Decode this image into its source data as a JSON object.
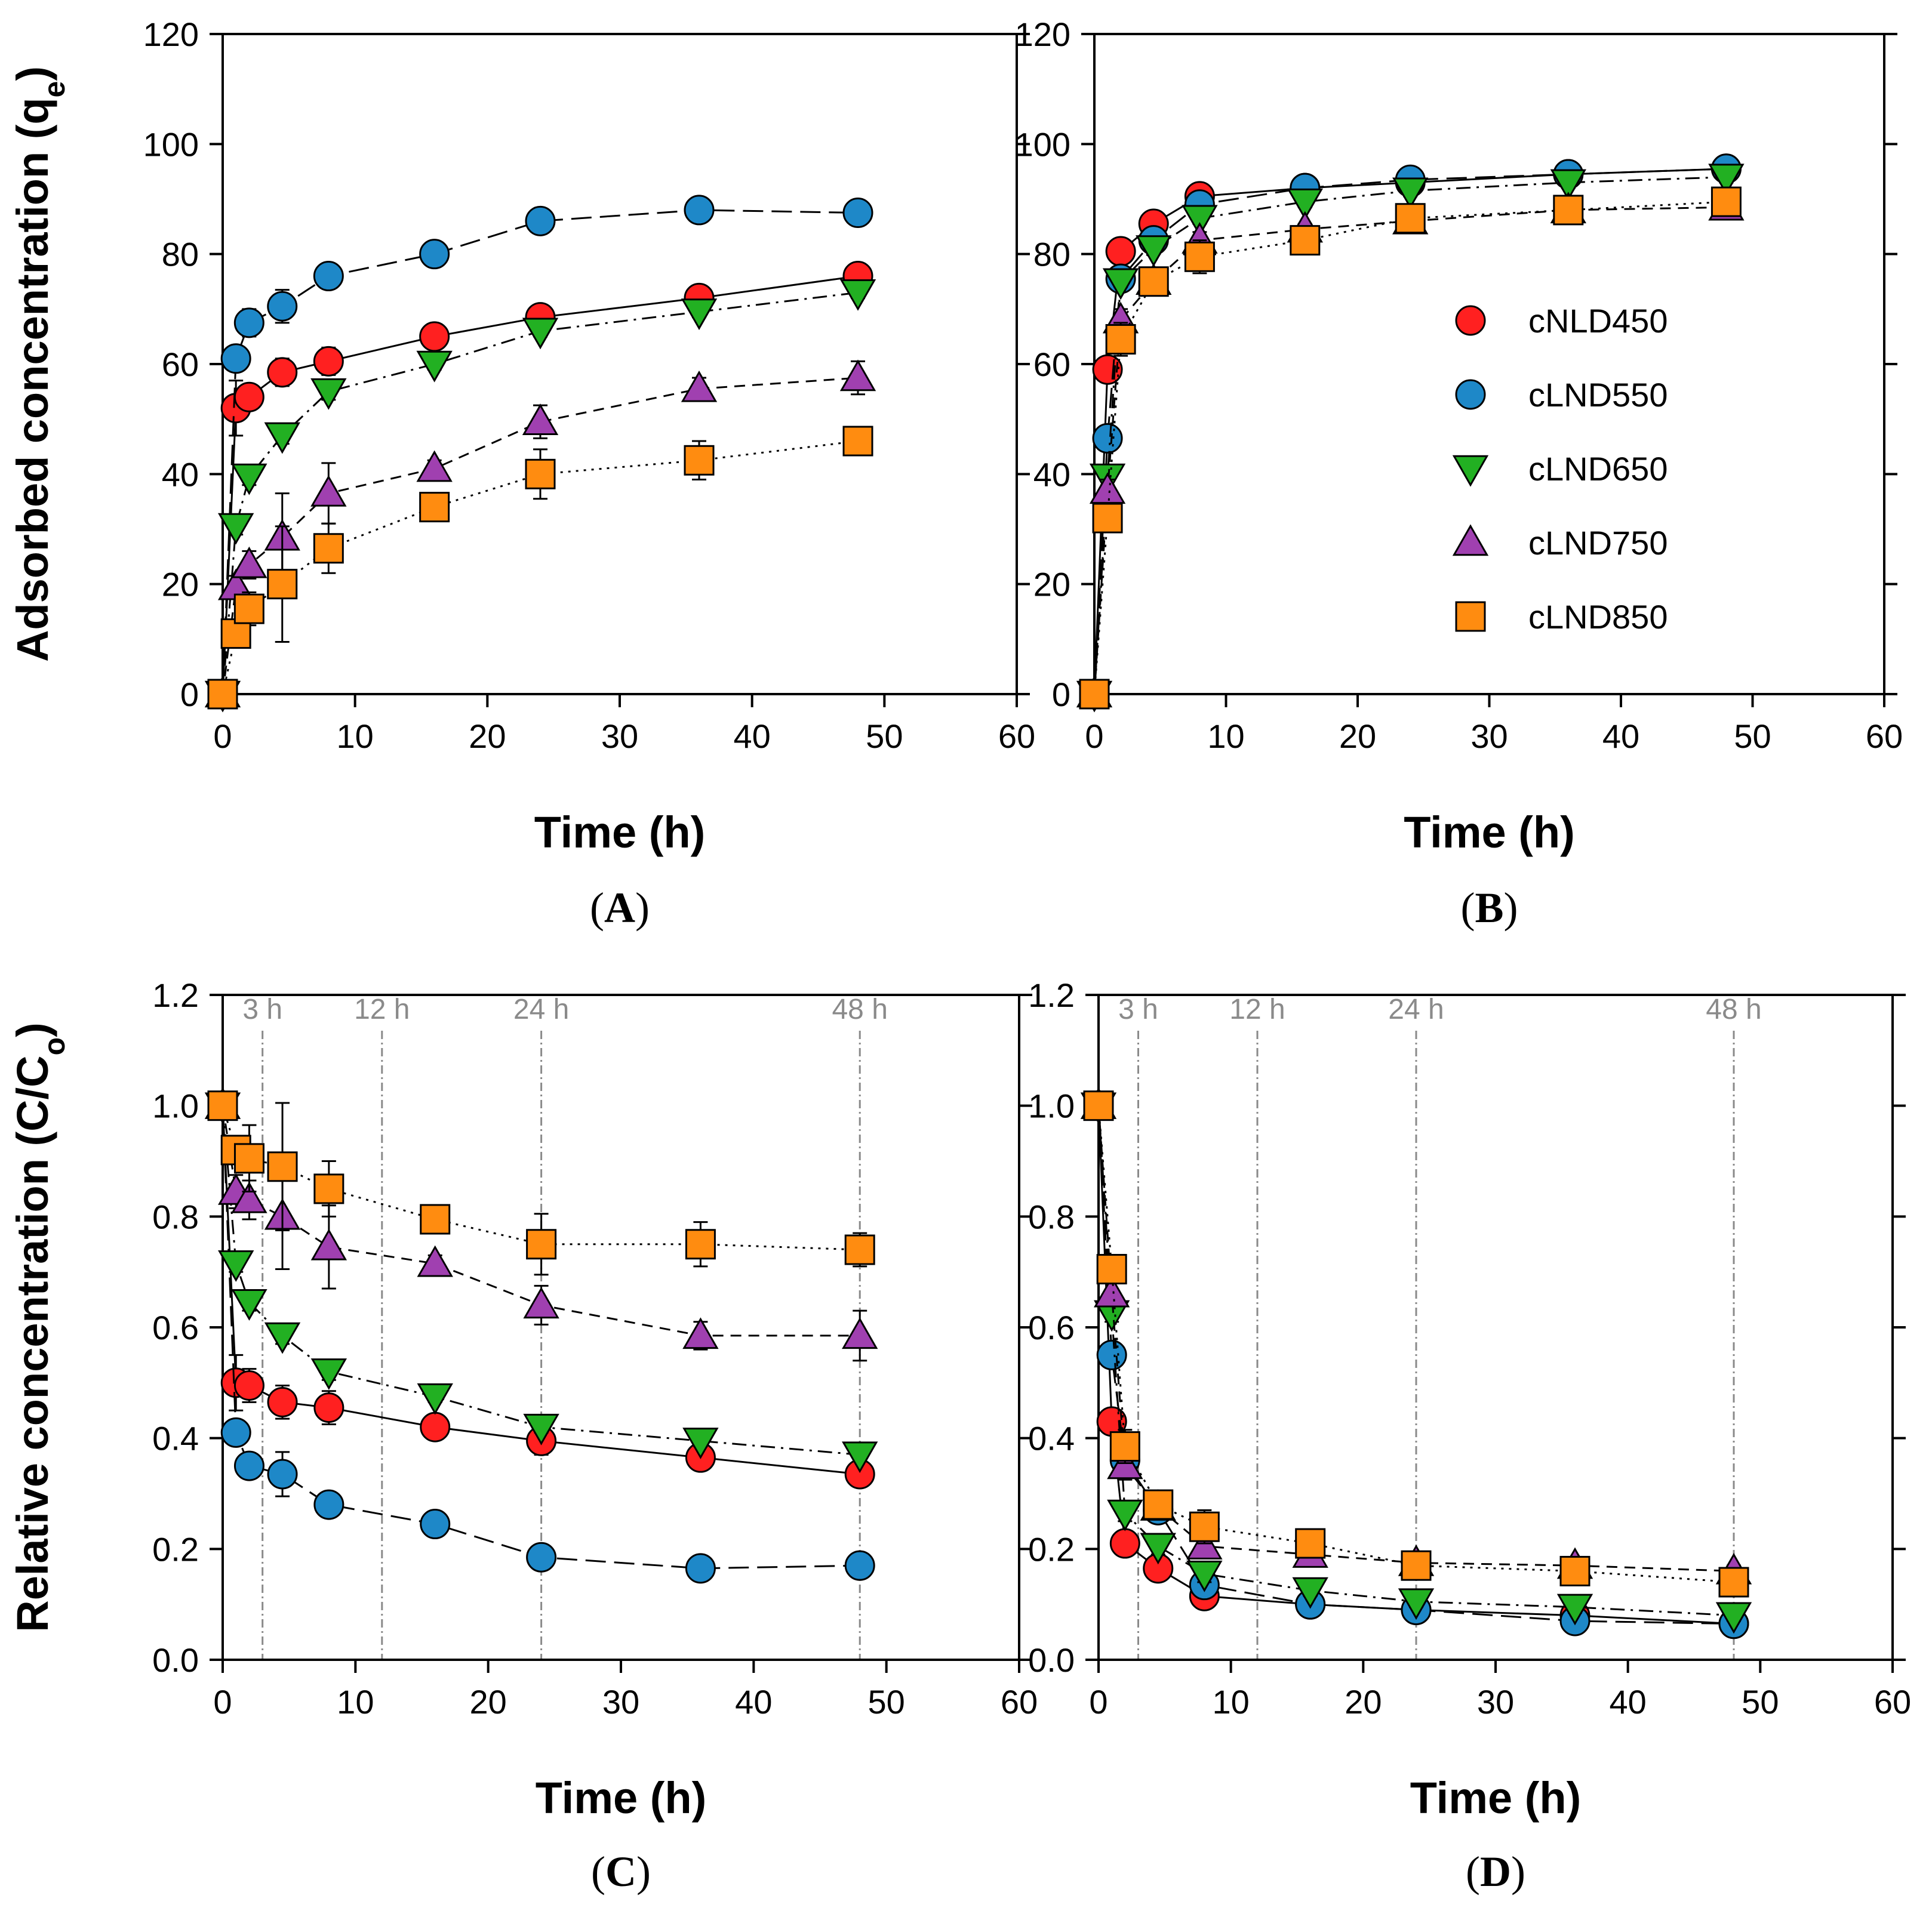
{
  "figure": {
    "shared_xlabel": "Time (h)",
    "series_styles": [
      {
        "name": "cNLD450",
        "color": "#ff2020",
        "marker": "circle",
        "dash": "solid"
      },
      {
        "name": "cLND550",
        "color": "#1e88c8",
        "marker": "circle",
        "dash": "longdash"
      },
      {
        "name": "cLND650",
        "color": "#22b022",
        "marker": "triangle-down",
        "dash": "dashdot"
      },
      {
        "name": "cLND750",
        "color": "#a040b0",
        "marker": "triangle-up",
        "dash": "dash"
      },
      {
        "name": "cLND850",
        "color": "#ff8c10",
        "marker": "square",
        "dash": "dotted"
      }
    ]
  },
  "chart_data": [
    {
      "panel": "A",
      "panel_label": "A",
      "type": "scatter",
      "xlabel": "Time (h)",
      "ylabel": "Adsorbed concentration (q",
      "ylabel_sub": "e",
      "ylabel_end": ")",
      "xlim": [
        0,
        60
      ],
      "ylim": [
        0,
        120
      ],
      "xticks": [
        0,
        10,
        20,
        30,
        40,
        50,
        60
      ],
      "yticks": [
        0,
        20,
        40,
        60,
        80,
        100,
        120
      ],
      "x": [
        0,
        1,
        2,
        4.5,
        8,
        16,
        24,
        36,
        48
      ],
      "series": [
        {
          "name": "cNLD450",
          "values": [
            0,
            52,
            54,
            58.5,
            60.5,
            65,
            68.5,
            72,
            76
          ],
          "errors": [
            0,
            5,
            2,
            2.5,
            2.5,
            1.5,
            1.5,
            1.5,
            1.5
          ]
        },
        {
          "name": "cLND550",
          "values": [
            0,
            61,
            67.5,
            70.5,
            76,
            80,
            86,
            88,
            87.5
          ],
          "errors": [
            0,
            1.5,
            2.5,
            3,
            1,
            1,
            1,
            1,
            1
          ]
        },
        {
          "name": "cLND650",
          "values": [
            0,
            30.5,
            39.5,
            47,
            55,
            60,
            66,
            69.5,
            73
          ],
          "errors": [
            0,
            1.5,
            1.5,
            1.5,
            1.5,
            1,
            1,
            1,
            1
          ]
        },
        {
          "name": "cLND750",
          "values": [
            0,
            19.5,
            23.5,
            28.5,
            36.5,
            41,
            49.5,
            55.5,
            57.5
          ],
          "errors": [
            0,
            2,
            2.5,
            8,
            5.5,
            1.5,
            3,
            2,
            3
          ]
        },
        {
          "name": "cLND850",
          "values": [
            0,
            11,
            15.5,
            20,
            26.5,
            34,
            40,
            42.5,
            46
          ],
          "errors": [
            0,
            1.5,
            3,
            10.5,
            4.5,
            1.5,
            4.5,
            3.5,
            2.5
          ]
        }
      ]
    },
    {
      "panel": "B",
      "panel_label": "B",
      "type": "scatter",
      "xlabel": "Time (h)",
      "xlim": [
        0,
        60
      ],
      "ylim": [
        0,
        120
      ],
      "xticks": [
        0,
        10,
        20,
        30,
        40,
        50,
        60
      ],
      "yticks": [
        0,
        20,
        40,
        60,
        80,
        100,
        120
      ],
      "legend": {
        "placement": "center-right",
        "entries": [
          "cNLD450",
          "cLND550",
          "cLND650",
          "cLND750",
          "cLND850"
        ]
      },
      "x": [
        0,
        1,
        2,
        4.5,
        8,
        16,
        24,
        36,
        48
      ],
      "series": [
        {
          "name": "cNLD450",
          "values": [
            0,
            59,
            80.5,
            85.5,
            90.5,
            92,
            93,
            94.5,
            95.5
          ],
          "errors": [
            0,
            2,
            1,
            1,
            1,
            1,
            1,
            1,
            1
          ]
        },
        {
          "name": "cLND550",
          "values": [
            0,
            46.5,
            75.5,
            82.5,
            89,
            92,
            93.5,
            94.5,
            95.5
          ],
          "errors": [
            0,
            2,
            1,
            1,
            1,
            1,
            1,
            1,
            1
          ]
        },
        {
          "name": "cLND650",
          "values": [
            0,
            39.5,
            75,
            81,
            86.5,
            89.5,
            91.5,
            93,
            94
          ],
          "errors": [
            0,
            1.5,
            1,
            1,
            1,
            1,
            1,
            1,
            1
          ]
        },
        {
          "name": "cLND750",
          "values": [
            0,
            37,
            68,
            75,
            82.5,
            84.5,
            86,
            88,
            88.5
          ],
          "errors": [
            0,
            2,
            2,
            1.5,
            1.5,
            1,
            1,
            1,
            1
          ]
        },
        {
          "name": "cLND850",
          "values": [
            0,
            32,
            64.5,
            75,
            79.5,
            82.5,
            86.5,
            88,
            89.5
          ],
          "errors": [
            0,
            2,
            3,
            1.5,
            3,
            1.5,
            1,
            1,
            1.5
          ]
        }
      ]
    },
    {
      "panel": "C",
      "panel_label": "C",
      "type": "scatter",
      "xlabel": "Time (h)",
      "ylabel": "Relative concentration (C/C",
      "ylabel_sub": "o",
      "ylabel_end": ")",
      "xlim": [
        0,
        60
      ],
      "ylim": [
        0,
        1.2
      ],
      "xticks": [
        0,
        10,
        20,
        30,
        40,
        50,
        60
      ],
      "yticks": [
        "0.0",
        "0.2",
        "0.4",
        "0.6",
        "0.8",
        "1.0",
        "1.2"
      ],
      "vlines": [
        {
          "x": 3,
          "label": "3 h"
        },
        {
          "x": 12,
          "label": "12 h"
        },
        {
          "x": 24,
          "label": "24 h"
        },
        {
          "x": 48,
          "label": "48 h"
        }
      ],
      "x": [
        0,
        1,
        2,
        4.5,
        8,
        16,
        24,
        36,
        48
      ],
      "series": [
        {
          "name": "cNLD450",
          "values": [
            1.0,
            0.5,
            0.495,
            0.465,
            0.455,
            0.42,
            0.395,
            0.365,
            0.335
          ],
          "errors": [
            0,
            0.05,
            0.03,
            0.03,
            0.03,
            0.02,
            0.025,
            0.02,
            0.015
          ]
        },
        {
          "name": "cLND550",
          "values": [
            1.0,
            0.41,
            0.35,
            0.335,
            0.28,
            0.245,
            0.185,
            0.165,
            0.17
          ],
          "errors": [
            0,
            0.02,
            0.02,
            0.04,
            0.01,
            0.01,
            0.01,
            0.01,
            0.01
          ]
        },
        {
          "name": "cLND650",
          "values": [
            1.0,
            0.715,
            0.645,
            0.585,
            0.52,
            0.475,
            0.42,
            0.395,
            0.37
          ],
          "errors": [
            0,
            0.015,
            0.015,
            0.015,
            0.015,
            0.01,
            0.01,
            0.01,
            0.01
          ]
        },
        {
          "name": "cLND750",
          "values": [
            1.0,
            0.845,
            0.83,
            0.8,
            0.745,
            0.715,
            0.64,
            0.585,
            0.585
          ],
          "errors": [
            0,
            0.03,
            0.035,
            0.095,
            0.075,
            0.015,
            0.035,
            0.025,
            0.045
          ]
        },
        {
          "name": "cLND850",
          "values": [
            1.0,
            0.92,
            0.905,
            0.89,
            0.85,
            0.795,
            0.75,
            0.75,
            0.74
          ],
          "errors": [
            0,
            0.02,
            0.06,
            0.115,
            0.05,
            0.02,
            0.055,
            0.04,
            0.03
          ]
        }
      ]
    },
    {
      "panel": "D",
      "panel_label": "D",
      "type": "scatter",
      "xlabel": "Time (h)",
      "xlim": [
        0,
        60
      ],
      "ylim": [
        0,
        1.2
      ],
      "xticks": [
        0,
        10,
        20,
        30,
        40,
        50,
        60
      ],
      "yticks": [
        "0.0",
        "0.2",
        "0.4",
        "0.6",
        "0.8",
        "1.0",
        "1.2"
      ],
      "vlines": [
        {
          "x": 3,
          "label": "3 h"
        },
        {
          "x": 12,
          "label": "12 h"
        },
        {
          "x": 24,
          "label": "24 h"
        },
        {
          "x": 48,
          "label": "48 h"
        }
      ],
      "x": [
        0,
        1,
        2,
        4.5,
        8,
        16,
        24,
        36,
        48
      ],
      "series": [
        {
          "name": "cNLD450",
          "values": [
            1.0,
            0.43,
            0.21,
            0.165,
            0.115,
            0.1,
            0.09,
            0.08,
            0.065
          ],
          "errors": [
            0,
            0.015,
            0.01,
            0.01,
            0.01,
            0.01,
            0.01,
            0.01,
            0.01
          ]
        },
        {
          "name": "cLND550",
          "values": [
            1.0,
            0.55,
            0.36,
            0.27,
            0.135,
            0.1,
            0.09,
            0.07,
            0.065
          ],
          "errors": [
            0,
            0.02,
            0.02,
            0.02,
            0.02,
            0.01,
            0.01,
            0.01,
            0.01
          ]
        },
        {
          "name": "cLND650",
          "values": [
            1.0,
            0.625,
            0.265,
            0.205,
            0.155,
            0.125,
            0.105,
            0.095,
            0.08
          ],
          "errors": [
            0,
            0.015,
            0.015,
            0.015,
            0.015,
            0.01,
            0.01,
            0.01,
            0.01
          ]
        },
        {
          "name": "cLND750",
          "values": [
            1.0,
            0.66,
            0.35,
            0.275,
            0.205,
            0.19,
            0.175,
            0.17,
            0.16
          ],
          "errors": [
            0,
            0.02,
            0.025,
            0.02,
            0.02,
            0.02,
            0.015,
            0.01,
            0.01
          ]
        },
        {
          "name": "cLND850",
          "values": [
            1.0,
            0.705,
            0.385,
            0.28,
            0.24,
            0.21,
            0.17,
            0.16,
            0.14
          ],
          "errors": [
            0,
            0.02,
            0.03,
            0.02,
            0.03,
            0.02,
            0.015,
            0.01,
            0.01
          ]
        }
      ]
    }
  ]
}
